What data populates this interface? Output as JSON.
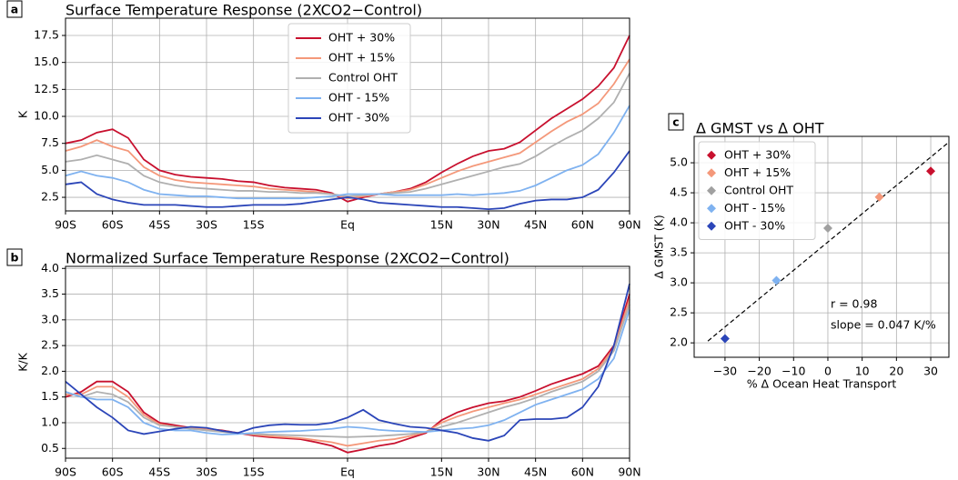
{
  "chart_data": [
    {
      "type": "line",
      "panel": "a",
      "title": "Surface Temperature Response (2XCO2−Control)",
      "ylabel": "K",
      "x": [
        -90,
        -85,
        -80,
        -75,
        -70,
        -65,
        -60,
        -55,
        -50,
        -45,
        -40,
        -35,
        -30,
        -25,
        -20,
        -15,
        -10,
        -5,
        0,
        5,
        10,
        15,
        20,
        25,
        30,
        35,
        40,
        45,
        50,
        55,
        60,
        65,
        70,
        75,
        80,
        85,
        90
      ],
      "series": [
        {
          "name": "OHT + 30%",
          "color": "#c8102e",
          "values": [
            7.5,
            7.8,
            8.5,
            8.8,
            8.0,
            6.0,
            5.0,
            4.6,
            4.4,
            4.3,
            4.2,
            4.0,
            3.9,
            3.6,
            3.4,
            3.3,
            3.2,
            2.9,
            2.1,
            2.5,
            2.8,
            3.0,
            3.3,
            3.9,
            4.8,
            5.6,
            6.3,
            6.8,
            7.0,
            7.6,
            8.7,
            9.8,
            10.7,
            11.6,
            12.8,
            14.5,
            17.5
          ]
        },
        {
          "name": "OHT + 15%",
          "color": "#f4987a",
          "values": [
            6.8,
            7.2,
            7.8,
            7.2,
            6.8,
            5.3,
            4.5,
            4.1,
            3.9,
            3.8,
            3.7,
            3.6,
            3.5,
            3.3,
            3.2,
            3.1,
            3.0,
            2.8,
            2.4,
            2.6,
            2.8,
            3.0,
            3.2,
            3.7,
            4.3,
            4.9,
            5.4,
            5.8,
            6.2,
            6.6,
            7.6,
            8.6,
            9.5,
            10.2,
            11.2,
            13.0,
            15.3
          ]
        },
        {
          "name": "Control OHT",
          "color": "#b0b0b0",
          "values": [
            5.8,
            6.0,
            6.4,
            6.0,
            5.6,
            4.5,
            3.9,
            3.6,
            3.4,
            3.3,
            3.2,
            3.1,
            3.1,
            3.0,
            3.0,
            2.9,
            2.9,
            2.8,
            2.6,
            2.7,
            2.8,
            2.9,
            3.0,
            3.3,
            3.7,
            4.1,
            4.5,
            4.9,
            5.3,
            5.6,
            6.3,
            7.2,
            8.0,
            8.7,
            9.8,
            11.3,
            14.0
          ]
        },
        {
          "name": "OHT - 15%",
          "color": "#7fb2f0",
          "values": [
            4.5,
            4.9,
            4.5,
            4.3,
            3.9,
            3.2,
            2.8,
            2.7,
            2.6,
            2.6,
            2.5,
            2.4,
            2.4,
            2.4,
            2.4,
            2.4,
            2.5,
            2.6,
            2.8,
            2.8,
            2.8,
            2.7,
            2.7,
            2.7,
            2.7,
            2.8,
            2.7,
            2.8,
            2.9,
            3.1,
            3.6,
            4.3,
            5.0,
            5.5,
            6.5,
            8.5,
            11.0
          ]
        },
        {
          "name": "OHT - 30%",
          "color": "#2b45b8",
          "values": [
            3.7,
            3.9,
            2.8,
            2.3,
            2.0,
            1.8,
            1.8,
            1.8,
            1.7,
            1.6,
            1.6,
            1.7,
            1.8,
            1.8,
            1.8,
            1.9,
            2.1,
            2.3,
            2.5,
            2.3,
            2.0,
            1.9,
            1.8,
            1.7,
            1.6,
            1.6,
            1.5,
            1.4,
            1.5,
            1.9,
            2.2,
            2.3,
            2.3,
            2.5,
            3.2,
            4.8,
            6.8
          ]
        }
      ],
      "xlim": [
        -90,
        90
      ],
      "ylim": [
        1.24,
        19.1
      ],
      "xticks": [
        {
          "value": -90,
          "label": "90S"
        },
        {
          "value": -75,
          "label": "60S"
        },
        {
          "value": -60,
          "label": "45S"
        },
        {
          "value": -45,
          "label": "30S"
        },
        {
          "value": -30,
          "label": "15S"
        },
        {
          "value": 0,
          "label": "Eq"
        },
        {
          "value": 30,
          "label": "15N"
        },
        {
          "value": 45,
          "label": "30N"
        },
        {
          "value": 60,
          "label": "45N"
        },
        {
          "value": 75,
          "label": "60N"
        },
        {
          "value": 90,
          "label": "90N"
        }
      ],
      "yticks": [
        2.5,
        {
          "value": 5,
          "label": "5.0"
        },
        7.5,
        {
          "value": 10,
          "label": "10.0"
        },
        12.5,
        {
          "value": 15,
          "label": "15.0"
        },
        17.5
      ],
      "grid": true,
      "legend": "upper center"
    },
    {
      "type": "line",
      "panel": "b",
      "title": "Normalized Surface Temperature Response (2XCO2−Control)",
      "ylabel": "K/K",
      "x": [
        -90,
        -85,
        -80,
        -75,
        -70,
        -65,
        -60,
        -55,
        -50,
        -45,
        -40,
        -35,
        -30,
        -25,
        -20,
        -15,
        -10,
        -5,
        0,
        5,
        10,
        15,
        20,
        25,
        30,
        35,
        40,
        45,
        50,
        55,
        60,
        65,
        70,
        75,
        80,
        85,
        90
      ],
      "series": [
        {
          "name": "OHT + 30%",
          "color": "#c8102e",
          "values": [
            1.5,
            1.6,
            1.8,
            1.8,
            1.6,
            1.2,
            1.0,
            0.95,
            0.9,
            0.88,
            0.85,
            0.8,
            0.75,
            0.72,
            0.7,
            0.68,
            0.62,
            0.55,
            0.42,
            0.48,
            0.55,
            0.6,
            0.7,
            0.8,
            1.05,
            1.2,
            1.3,
            1.38,
            1.42,
            1.5,
            1.62,
            1.75,
            1.85,
            1.95,
            2.1,
            2.5,
            3.5
          ]
        },
        {
          "name": "OHT + 15%",
          "color": "#f4987a",
          "values": [
            1.55,
            1.55,
            1.7,
            1.7,
            1.5,
            1.15,
            0.97,
            0.92,
            0.9,
            0.87,
            0.84,
            0.8,
            0.77,
            0.74,
            0.72,
            0.7,
            0.66,
            0.62,
            0.55,
            0.6,
            0.65,
            0.68,
            0.74,
            0.82,
            1.0,
            1.12,
            1.22,
            1.3,
            1.38,
            1.45,
            1.55,
            1.65,
            1.75,
            1.85,
            2.05,
            2.45,
            3.4
          ]
        },
        {
          "name": "Control OHT",
          "color": "#b0b0b0",
          "values": [
            1.6,
            1.5,
            1.6,
            1.55,
            1.4,
            1.1,
            0.95,
            0.92,
            0.88,
            0.85,
            0.82,
            0.79,
            0.78,
            0.77,
            0.76,
            0.75,
            0.74,
            0.73,
            0.72,
            0.73,
            0.74,
            0.76,
            0.78,
            0.82,
            0.92,
            1.0,
            1.1,
            1.2,
            1.3,
            1.38,
            1.48,
            1.6,
            1.7,
            1.8,
            2.0,
            2.4,
            3.3
          ]
        },
        {
          "name": "OHT - 15%",
          "color": "#7fb2f0",
          "values": [
            1.6,
            1.5,
            1.45,
            1.45,
            1.3,
            1.0,
            0.88,
            0.85,
            0.85,
            0.8,
            0.77,
            0.78,
            0.8,
            0.82,
            0.83,
            0.84,
            0.86,
            0.88,
            0.92,
            0.9,
            0.86,
            0.84,
            0.83,
            0.82,
            0.85,
            0.88,
            0.9,
            0.95,
            1.05,
            1.2,
            1.35,
            1.45,
            1.55,
            1.65,
            1.85,
            2.25,
            3.2
          ]
        },
        {
          "name": "OHT - 30%",
          "color": "#2b45b8",
          "values": [
            1.8,
            1.55,
            1.3,
            1.1,
            0.85,
            0.78,
            0.83,
            0.88,
            0.92,
            0.9,
            0.84,
            0.8,
            0.9,
            0.95,
            0.97,
            0.96,
            0.96,
            1.0,
            1.1,
            1.25,
            1.05,
            0.98,
            0.92,
            0.9,
            0.85,
            0.8,
            0.7,
            0.65,
            0.75,
            1.05,
            1.07,
            1.07,
            1.1,
            1.3,
            1.7,
            2.5,
            3.7
          ]
        }
      ],
      "xlim": [
        -90,
        90
      ],
      "ylim": [
        0.31,
        4.04
      ],
      "xticks": [
        {
          "value": -90,
          "label": "90S"
        },
        {
          "value": -75,
          "label": "60S"
        },
        {
          "value": -60,
          "label": "45S"
        },
        {
          "value": -45,
          "label": "30S"
        },
        {
          "value": -30,
          "label": "15S"
        },
        {
          "value": 0,
          "label": "Eq"
        },
        {
          "value": 30,
          "label": "15N"
        },
        {
          "value": 45,
          "label": "30N"
        },
        {
          "value": 60,
          "label": "45N"
        },
        {
          "value": 75,
          "label": "60N"
        },
        {
          "value": 90,
          "label": "90N"
        }
      ],
      "yticks": [
        0.5,
        {
          "value": 1,
          "label": "1.0"
        },
        1.5,
        {
          "value": 2,
          "label": "2.0"
        },
        2.5,
        {
          "value": 3,
          "label": "3.0"
        },
        3.5,
        {
          "value": 4,
          "label": "4.0"
        }
      ],
      "grid": true
    },
    {
      "type": "scatter",
      "panel": "c",
      "title": "Δ GMST vs Δ OHT",
      "xlabel": "% Δ Ocean Heat Transport",
      "ylabel": "Δ GMST (K)",
      "series": [
        {
          "name": "OHT + 30%",
          "color": "#c8102e",
          "x": [
            30
          ],
          "values": [
            4.86
          ]
        },
        {
          "name": "OHT + 15%",
          "color": "#f4987a",
          "x": [
            15
          ],
          "values": [
            4.43
          ]
        },
        {
          "name": "Control OHT",
          "color": "#a0a0a0",
          "x": [
            0
          ],
          "values": [
            3.91
          ]
        },
        {
          "name": "OHT - 15%",
          "color": "#7fb2f0",
          "x": [
            -15
          ],
          "values": [
            3.04
          ]
        },
        {
          "name": "OHT - 30%",
          "color": "#2b45b8",
          "x": [
            -30
          ],
          "values": [
            2.07
          ]
        }
      ],
      "fit_line": {
        "x": [
          -35,
          35
        ],
        "y": [
          2.03,
          5.33
        ]
      },
      "annotations": [
        "r = 0.98",
        "slope = 0.047 K/%"
      ],
      "xlim": [
        -39,
        35.3
      ],
      "ylim": [
        1.76,
        5.44
      ],
      "xticks": [
        {
          "value": -30,
          "label": "−30"
        },
        {
          "value": -20,
          "label": "−20"
        },
        {
          "value": -10,
          "label": "−10"
        },
        0,
        10,
        20,
        30
      ],
      "yticks": [
        {
          "value": 2,
          "label": "2.0"
        },
        2.5,
        {
          "value": 3,
          "label": "3.0"
        },
        3.5,
        {
          "value": 4,
          "label": "4.0"
        },
        4.5,
        {
          "value": 5,
          "label": "5.0"
        }
      ],
      "grid": true,
      "legend": "upper left"
    }
  ]
}
